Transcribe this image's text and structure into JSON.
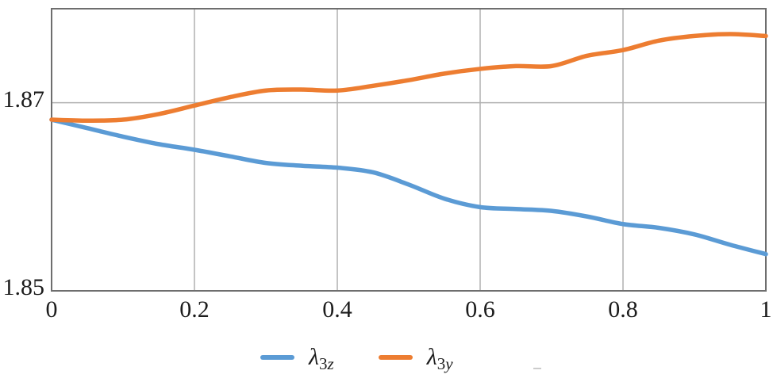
{
  "chart_data": {
    "type": "line",
    "title": "",
    "xlabel": "",
    "ylabel": "",
    "xlim": [
      0,
      1
    ],
    "ylim": [
      1.85,
      1.88
    ],
    "grid": true,
    "legend_position": "bottom",
    "x_ticks": [
      0,
      0.2,
      0.4,
      0.6,
      0.8,
      1
    ],
    "x_tick_labels": [
      "0",
      "0.2",
      "0.4",
      "0.6",
      "0.8",
      "1"
    ],
    "y_ticks": [
      1.85,
      1.87
    ],
    "y_tick_labels": [
      "1.85",
      "1.87"
    ],
    "x": [
      0,
      0.05,
      0.1,
      0.15,
      0.2,
      0.25,
      0.3,
      0.35,
      0.4,
      0.45,
      0.5,
      0.55,
      0.6,
      0.65,
      0.7,
      0.75,
      0.8,
      0.85,
      0.9,
      0.95,
      1
    ],
    "series": [
      {
        "name": "λ3z",
        "color": "#5B9BD5",
        "values": [
          1.8682,
          1.8673,
          1.8664,
          1.8656,
          1.865,
          1.8643,
          1.8636,
          1.8633,
          1.8631,
          1.8626,
          1.8613,
          1.8598,
          1.8589,
          1.8587,
          1.8585,
          1.8579,
          1.8571,
          1.8567,
          1.856,
          1.8549,
          1.8539
        ]
      },
      {
        "name": "λ3y",
        "color": "#ED7D31",
        "values": [
          1.8682,
          1.8681,
          1.8682,
          1.8688,
          1.8697,
          1.8706,
          1.8713,
          1.8714,
          1.8713,
          1.8718,
          1.8724,
          1.8731,
          1.8736,
          1.8739,
          1.8739,
          1.875,
          1.8756,
          1.8766,
          1.8771,
          1.8773,
          1.8771
        ]
      }
    ]
  },
  "legend": {
    "items": [
      {
        "name": "lambda-3z",
        "symbol": "λ",
        "sub_digit": "3",
        "sub_letter": "z",
        "color": "#5B9BD5"
      },
      {
        "name": "lambda-3y",
        "symbol": "λ",
        "sub_digit": "3",
        "sub_letter": "y",
        "color": "#ED7D31"
      }
    ]
  },
  "colors": {
    "grid": "#b0b0b0",
    "frame": "#6e6e6e",
    "text": "#1c1c1c",
    "background": "#ffffff"
  }
}
